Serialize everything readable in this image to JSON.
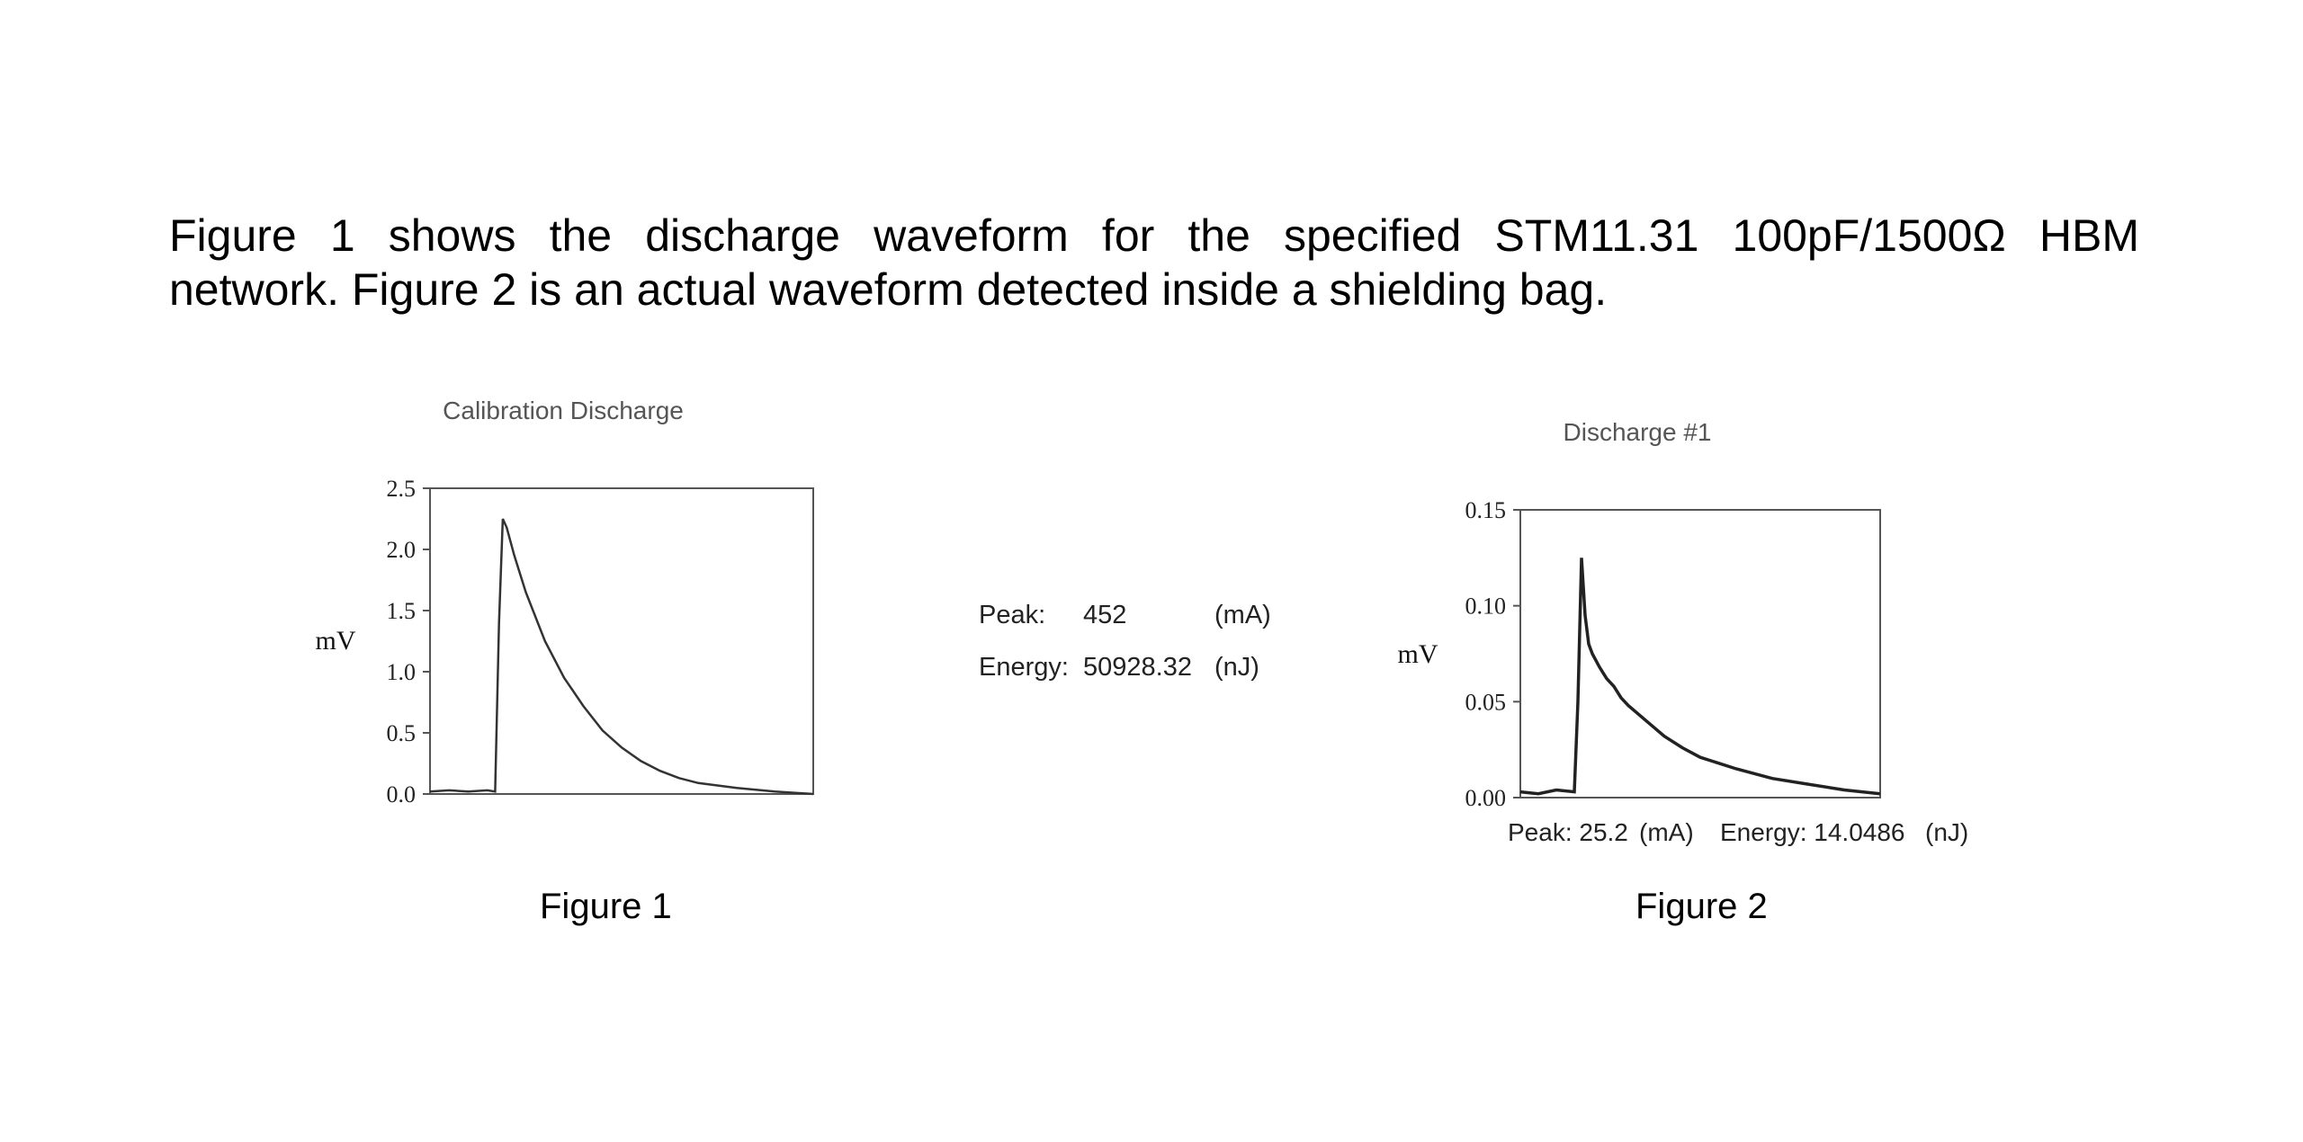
{
  "paragraph": {
    "line1": "Figure 1 shows the discharge waveform for the specified STM11.31 100pF/1500Ω HBM",
    "line2": "network. Figure 2 is an actual waveform detected inside a shielding bag."
  },
  "figures": {
    "fig1_caption": "Figure 1",
    "fig2_caption": "Figure 2"
  },
  "measurements": {
    "peak_label": "Peak:",
    "peak_value": "452",
    "peak_unit": "(mA)",
    "energy_label": "Energy:",
    "energy_value": "50928.32",
    "energy_unit": "(nJ)"
  },
  "fig2_footer": {
    "peak": "Peak: 25.2",
    "peak_unit": "(mA)",
    "energy": "Energy: 14.0486",
    "energy_unit": "(nJ)"
  },
  "chart_data": [
    {
      "type": "line",
      "title": "Calibration Discharge",
      "ylabel": "mV",
      "xlabel": "",
      "ylim": [
        0,
        2.5
      ],
      "yticks": [
        "2.5",
        "2.0",
        "1.5",
        "1.0",
        "0.5",
        "0.0"
      ],
      "x": [
        0,
        0.05,
        0.1,
        0.15,
        0.17,
        0.18,
        0.19,
        0.2,
        0.22,
        0.25,
        0.3,
        0.35,
        0.4,
        0.45,
        0.5,
        0.55,
        0.6,
        0.65,
        0.7,
        0.8,
        0.9,
        1.0
      ],
      "series": [
        {
          "values": [
            0.02,
            0.03,
            0.02,
            0.03,
            0.02,
            1.4,
            2.25,
            2.18,
            1.95,
            1.65,
            1.25,
            0.95,
            0.72,
            0.52,
            0.38,
            0.27,
            0.19,
            0.13,
            0.09,
            0.05,
            0.02,
            0.0
          ]
        }
      ]
    },
    {
      "type": "line",
      "title": "Discharge #1",
      "ylabel": "mV",
      "xlabel": "",
      "ylim": [
        0,
        0.15
      ],
      "yticks": [
        "0.15",
        "0.10",
        "0.05",
        "0.00"
      ],
      "x": [
        0,
        0.05,
        0.1,
        0.15,
        0.16,
        0.17,
        0.18,
        0.19,
        0.2,
        0.22,
        0.24,
        0.26,
        0.28,
        0.3,
        0.35,
        0.4,
        0.45,
        0.5,
        0.6,
        0.7,
        0.8,
        0.9,
        1.0
      ],
      "series": [
        {
          "values": [
            0.003,
            0.002,
            0.004,
            0.003,
            0.05,
            0.125,
            0.095,
            0.08,
            0.075,
            0.068,
            0.062,
            0.058,
            0.052,
            0.048,
            0.04,
            0.032,
            0.026,
            0.021,
            0.015,
            0.01,
            0.007,
            0.004,
            0.002
          ]
        }
      ]
    }
  ]
}
